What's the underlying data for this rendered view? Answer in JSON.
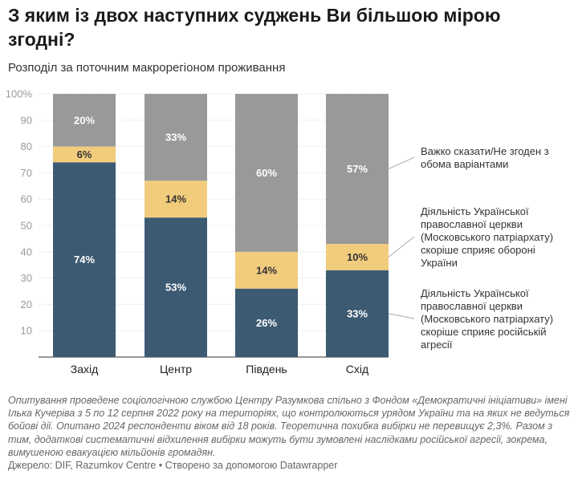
{
  "title": "З яким із двох наступних суджень Ви більшою мірою згодні?",
  "subtitle": "Розподіл за поточним макрорегіоном проживання",
  "note": "Опитування проведене соціологічною службою Центру Разумкова спільно з Фондом «Демократичні ініціативи» імені Ілька Кучеріва з 5 по 12 серпня 2022 року на територіях, що контролюються урядом України та на яких не ведуться бойові дії. Опитано 2024 респонденти віком від 18 років. Теоретична похибка вибірки не перевищує 2,3%. Разом з тим, додаткові систематичні відхилення вибірки можуть бути зумовлені наслідками російської агресії, зокрема, вимушеною евакуацією мільйонів громадян.",
  "source": "Джерело: DIF, Razumkov Centre • Створено за допомогою Datawrapper",
  "chart_data": {
    "type": "bar",
    "stacked": true,
    "categories": [
      "Захід",
      "Центр",
      "Південь",
      "Схід"
    ],
    "series": [
      {
        "name": "Діяльність Української православної церкви (Московського патріархату) скоріше сприяє російській агресії",
        "values": [
          74,
          53,
          26,
          33
        ],
        "labels": [
          "74%",
          "53%",
          "26%",
          "33%"
        ],
        "color": "#3d5a73"
      },
      {
        "name": "Діяльність Української православної церкви (Московського патріархату) скоріше сприяє обороні України",
        "values": [
          6,
          14,
          14,
          10
        ],
        "labels": [
          "6%",
          "14%",
          "14%",
          "10%"
        ],
        "color": "#f2cc7d"
      },
      {
        "name": "Важко сказати/Не згоден з обома варіантами",
        "values": [
          20,
          33,
          60,
          57
        ],
        "labels": [
          "20%",
          "33%",
          "60%",
          "57%"
        ],
        "color": "#999999"
      }
    ],
    "y_ticks": [
      10,
      20,
      30,
      40,
      50,
      60,
      70,
      80,
      90,
      100
    ],
    "y_tick_labels": [
      "10",
      "20",
      "30",
      "40",
      "50",
      "60",
      "70",
      "80",
      "90",
      "100%"
    ],
    "ylim": [
      0,
      100
    ],
    "grid": true,
    "legend_placement": "right",
    "legend_lines": [
      [
        "Важко сказати/Не згоден з",
        "обома варіантами"
      ],
      [
        "Діяльність Української",
        "православної церкви",
        "(Московського патріархату)",
        "скоріше сприяє обороні",
        "України"
      ],
      [
        "Діяльність Української",
        "православної церкви",
        "(Московського патріархату)",
        "скоріше сприяє російській",
        "агресії"
      ]
    ]
  }
}
